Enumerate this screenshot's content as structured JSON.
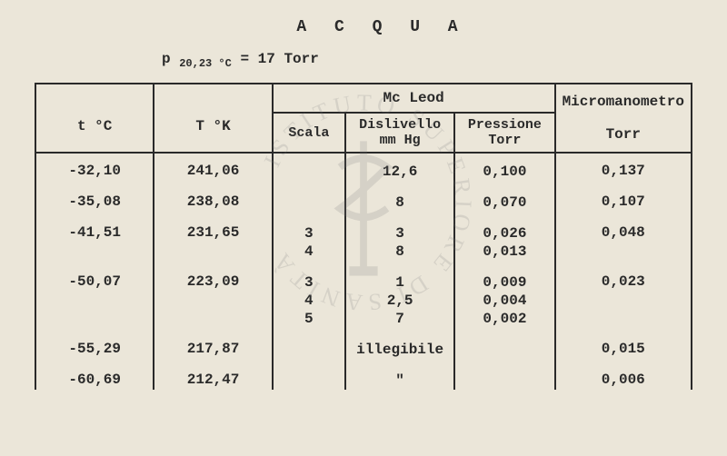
{
  "title": "A C Q U A",
  "formula_prefix": "p",
  "formula_sub": "20,23 °C",
  "formula_eq": "= 17 Torr",
  "headers": {
    "t": "t °C",
    "tk": "T °K",
    "mcleod": "Mc Leod",
    "scala": "Scala",
    "dislivello_l1": "Dislivello",
    "dislivello_l2": "mm Hg",
    "pressione_l1": "Pressione",
    "pressione_l2": "Torr",
    "micro_l1": "Micromanometro",
    "micro_l2": "Torr"
  },
  "rows": [
    {
      "t": "-32,10",
      "tk": "241,06",
      "scala": [
        ""
      ],
      "dis": [
        "12,6"
      ],
      "press": [
        "0,100"
      ],
      "micro": "0,137"
    },
    {
      "t": "-35,08",
      "tk": "238,08",
      "scala": [
        ""
      ],
      "dis": [
        "8"
      ],
      "press": [
        "0,070"
      ],
      "micro": "0,107"
    },
    {
      "t": "-41,51",
      "tk": "231,65",
      "scala": [
        "3",
        "4"
      ],
      "dis": [
        "3",
        "8"
      ],
      "press": [
        "0,026",
        "0,013"
      ],
      "micro": "0,048"
    },
    {
      "t": "-50,07",
      "tk": "223,09",
      "scala": [
        "3",
        "4",
        "5"
      ],
      "dis": [
        "1",
        "2,5",
        "7"
      ],
      "press": [
        "0,009",
        "0,004",
        "0,002"
      ],
      "micro": "0,023"
    },
    {
      "t": "-55,29",
      "tk": "217,87",
      "scala": [
        ""
      ],
      "dis": [
        "illegibile"
      ],
      "press": [
        ""
      ],
      "micro": "0,015"
    },
    {
      "t": "-60,69",
      "tk": "212,47",
      "scala": [
        ""
      ],
      "dis": [
        "\""
      ],
      "press": [
        ""
      ],
      "micro": "0,006"
    }
  ]
}
